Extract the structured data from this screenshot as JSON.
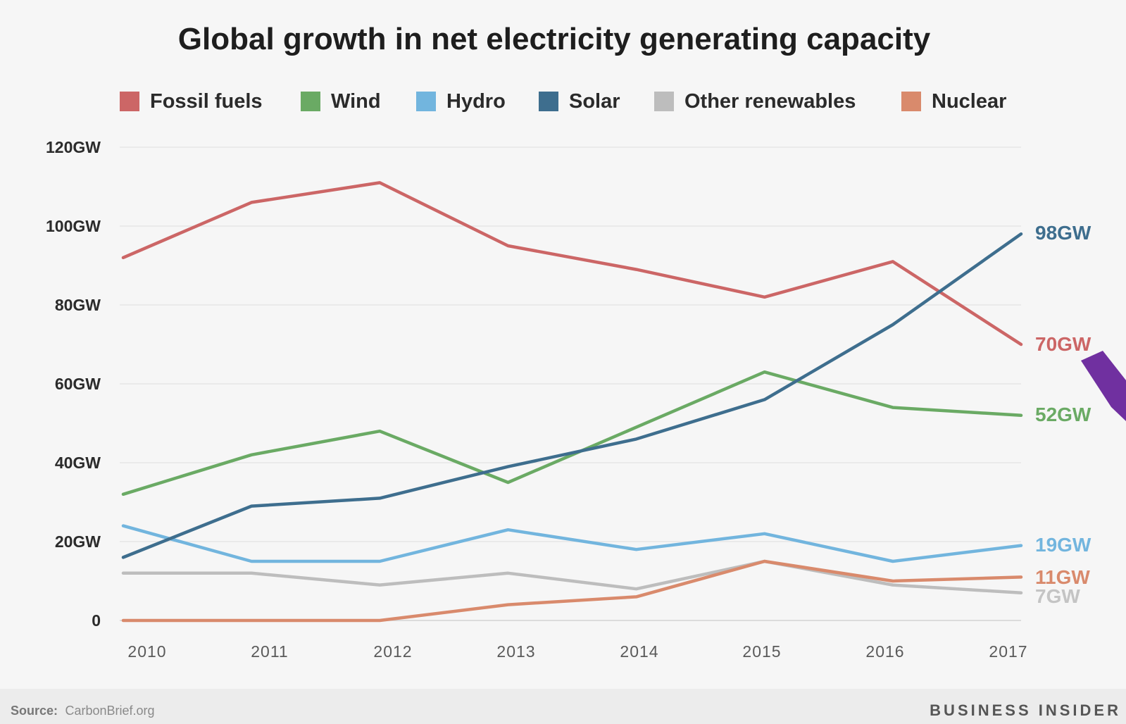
{
  "chart_data": {
    "type": "line",
    "title": "Global growth in net electricity generating capacity",
    "x": [
      "2010",
      "2011",
      "2012",
      "2013",
      "2014",
      "2015",
      "2016",
      "2017"
    ],
    "ylim": [
      0,
      120
    ],
    "y_ticks": [
      {
        "value": 0,
        "label": "0"
      },
      {
        "value": 20,
        "label": "20GW"
      },
      {
        "value": 40,
        "label": "40GW"
      },
      {
        "value": 60,
        "label": "60GW"
      },
      {
        "value": 80,
        "label": "80GW"
      },
      {
        "value": 100,
        "label": "100GW"
      },
      {
        "value": 120,
        "label": "120GW"
      }
    ],
    "grid": true,
    "legend_position": "top",
    "series": [
      {
        "name": "Fossil fuels",
        "color": "#cc6666",
        "values": [
          92,
          106,
          111,
          95,
          89,
          82,
          91,
          70
        ],
        "end_label": "70GW"
      },
      {
        "name": "Wind",
        "color": "#6aaa64",
        "values": [
          32,
          42,
          48,
          35,
          49,
          63,
          54,
          52
        ],
        "end_label": "52GW"
      },
      {
        "name": "Hydro",
        "color": "#72b5de",
        "values": [
          24,
          15,
          15,
          23,
          18,
          22,
          15,
          19
        ],
        "end_label": "19GW"
      },
      {
        "name": "Solar",
        "color": "#3e6e8e",
        "values": [
          16,
          29,
          31,
          39,
          46,
          56,
          75,
          98
        ],
        "end_label": "98GW"
      },
      {
        "name": "Other renewables",
        "color": "#bdbdbd",
        "values": [
          12,
          12,
          9,
          12,
          8,
          15,
          9,
          7
        ],
        "end_label": "7GW"
      },
      {
        "name": "Nuclear",
        "color": "#d98a6c",
        "values": [
          0,
          0,
          0,
          4,
          6,
          15,
          10,
          11
        ],
        "end_label": "11GW"
      }
    ]
  },
  "footer": {
    "source_key": "Source:",
    "source_value": "CarbonBrief.org",
    "brand": "BUSINESS INSIDER"
  },
  "overlay": {
    "arrow_color": "#7030a0"
  }
}
